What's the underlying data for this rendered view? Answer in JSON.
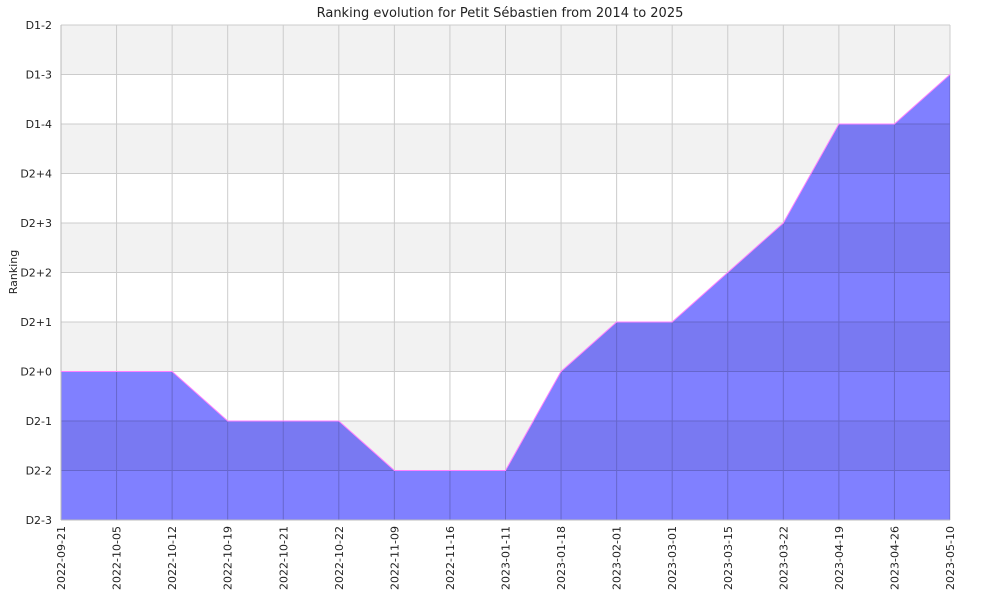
{
  "chart_data": {
    "type": "area",
    "title": "Ranking evolution for Petit Sébastien from 2014 to 2025",
    "xlabel": "",
    "ylabel": "Ranking",
    "y_ticks": [
      "D2-3",
      "D2-2",
      "D2-1",
      "D2+0",
      "D2+1",
      "D2+2",
      "D2+3",
      "D2+4",
      "D1-4",
      "D1-3",
      "D1-2"
    ],
    "ylim": [
      0,
      10
    ],
    "x": [
      "2022-09-21",
      "2022-10-05",
      "2022-10-12",
      "2022-10-19",
      "2022-10-21",
      "2022-10-22",
      "2022-11-09",
      "2022-11-16",
      "2023-01-11",
      "2023-01-18",
      "2023-02-01",
      "2023-03-01",
      "2023-03-15",
      "2023-03-22",
      "2023-04-19",
      "2023-04-26",
      "2023-05-10"
    ],
    "series": [
      {
        "values": [
          3,
          3,
          3,
          2,
          2,
          2,
          1,
          1,
          1,
          3,
          4,
          4,
          5,
          6,
          8,
          8,
          9
        ]
      }
    ],
    "grid": true,
    "colors": {
      "fill": "#8080ff",
      "line": "#ff80ff",
      "band": "#f2f2f2",
      "grid": "#cccccc"
    }
  }
}
